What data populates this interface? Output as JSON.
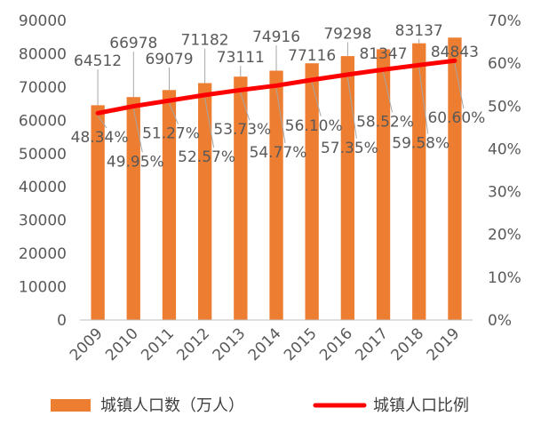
{
  "chart_data": {
    "type": "bar",
    "categories": [
      "2009",
      "2010",
      "2011",
      "2012",
      "2013",
      "2014",
      "2015",
      "2016",
      "2017",
      "2018",
      "2019"
    ],
    "series": [
      {
        "name": "城镇人口数（万人）",
        "kind": "bar",
        "axis": "left",
        "color": "#ED7D31",
        "values": [
          64512,
          66978,
          69079,
          71182,
          73111,
          74916,
          77116,
          79298,
          81347,
          83137,
          84843
        ],
        "labels": [
          "64512",
          "66978",
          "69079",
          "71182",
          "73111",
          "74916",
          "77116",
          "79298",
          "81347",
          "83137",
          "84843"
        ]
      },
      {
        "name": "城镇人口比例",
        "kind": "line",
        "axis": "right",
        "color": "#FF0000",
        "values": [
          48.34,
          49.95,
          51.27,
          52.57,
          53.73,
          54.77,
          56.1,
          57.35,
          58.52,
          59.58,
          60.6
        ],
        "labels": [
          "48.34%",
          "49.95%",
          "51.27%",
          "52.57%",
          "53.73%",
          "54.77%",
          "56.10%",
          "57.35%",
          "58.52%",
          "59.58%",
          "60.60%"
        ]
      }
    ],
    "y_left": {
      "lim": [
        0,
        90000
      ],
      "ticks": [
        "0",
        "10000",
        "20000",
        "30000",
        "40000",
        "50000",
        "60000",
        "70000",
        "80000",
        "90000"
      ]
    },
    "y_right": {
      "lim": [
        0,
        70
      ],
      "ticks": [
        "0%",
        "10%",
        "20%",
        "30%",
        "40%",
        "50%",
        "60%",
        "70%"
      ]
    },
    "grid": false,
    "legend_position": "bottom"
  }
}
